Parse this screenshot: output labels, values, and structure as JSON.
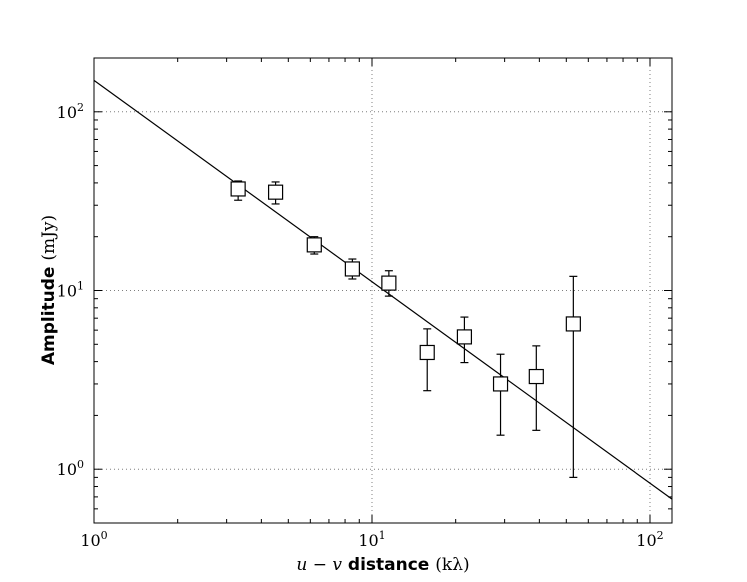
{
  "chart_data": {
    "type": "scatter",
    "title": "",
    "xlabel": {
      "italic1": "u",
      "minus": " − ",
      "italic2": "v",
      "bold": " distance ",
      "unit": "(kλ)"
    },
    "ylabel": {
      "bold": "Amplitude ",
      "unit": "(mJy)"
    },
    "xscale": "log",
    "yscale": "log",
    "xlim": [
      1,
      120
    ],
    "ylim": [
      0.5,
      200
    ],
    "grid": true,
    "x_ticks": [
      {
        "value": 1,
        "base": "10",
        "exp": "0"
      },
      {
        "value": 10,
        "base": "10",
        "exp": "1"
      },
      {
        "value": 100,
        "base": "10",
        "exp": "2"
      }
    ],
    "y_ticks": [
      {
        "value": 1,
        "base": "10",
        "exp": "0"
      },
      {
        "value": 10,
        "base": "10",
        "exp": "1"
      },
      {
        "value": 100,
        "base": "10",
        "exp": "2"
      }
    ],
    "points": [
      {
        "x": 3.3,
        "y": 37,
        "err_low": 32,
        "err_high": 41
      },
      {
        "x": 4.5,
        "y": 35.5,
        "err_low": 30.5,
        "err_high": 40.5
      },
      {
        "x": 6.2,
        "y": 18,
        "err_low": 16,
        "err_high": 20
      },
      {
        "x": 8.5,
        "y": 13.2,
        "err_low": 11.6,
        "err_high": 15
      },
      {
        "x": 11.5,
        "y": 11,
        "err_low": 9.3,
        "err_high": 12.9
      },
      {
        "x": 15.8,
        "y": 4.5,
        "err_low": 2.75,
        "err_high": 6.1
      },
      {
        "x": 21.5,
        "y": 5.5,
        "err_low": 3.95,
        "err_high": 7.1
      },
      {
        "x": 29,
        "y": 3.0,
        "err_low": 1.55,
        "err_high": 4.4
      },
      {
        "x": 39,
        "y": 3.3,
        "err_low": 1.65,
        "err_high": 4.9
      },
      {
        "x": 53,
        "y": 6.5,
        "err_low": 0.9,
        "err_high": 12
      }
    ],
    "fit_line": {
      "x": [
        1,
        120
      ],
      "y": [
        150,
        0.68
      ]
    },
    "colors": {
      "marker_stroke": "#000000",
      "marker_fill": "#ffffff",
      "line": "#000000",
      "grid": "#7f7f7f"
    }
  }
}
